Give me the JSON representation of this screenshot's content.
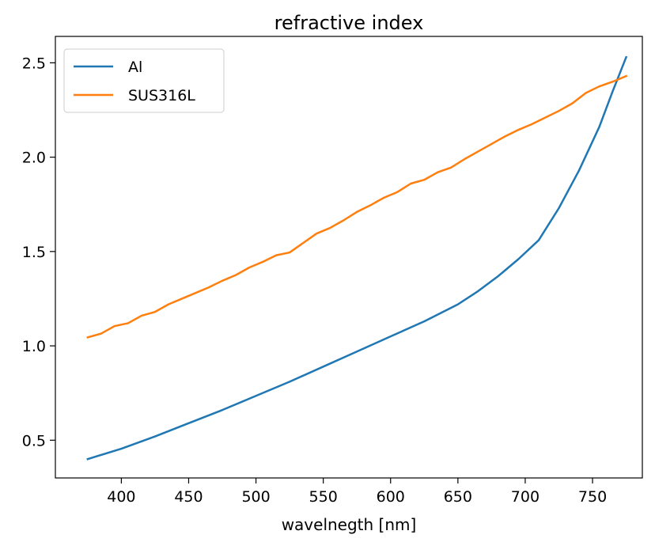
{
  "chart_data": {
    "type": "line",
    "title": "refractive index",
    "xlabel": "wavelnegth [nm]",
    "ylabel": "",
    "xlim": [
      351,
      787
    ],
    "ylim": [
      0.3,
      2.64
    ],
    "xticks": [
      400,
      450,
      500,
      550,
      600,
      650,
      700,
      750
    ],
    "yticks": [
      0.5,
      1.0,
      1.5,
      2.0,
      2.5
    ],
    "xtick_labels": [
      "400",
      "450",
      "500",
      "550",
      "600",
      "650",
      "700",
      "750"
    ],
    "ytick_labels": [
      "0.5",
      "1.0",
      "1.5",
      "2.0",
      "2.5"
    ],
    "grid": false,
    "legend_position": "top-left",
    "series": [
      {
        "name": "Al",
        "color": "#1f77b4",
        "x": [
          375,
          400,
          425,
          450,
          475,
          500,
          525,
          550,
          575,
          600,
          625,
          650,
          665,
          680,
          695,
          710,
          725,
          740,
          755,
          765,
          775
        ],
        "y": [
          0.4,
          0.455,
          0.52,
          0.59,
          0.66,
          0.735,
          0.81,
          0.89,
          0.97,
          1.05,
          1.13,
          1.22,
          1.29,
          1.37,
          1.46,
          1.56,
          1.73,
          1.93,
          2.16,
          2.35,
          2.53
        ]
      },
      {
        "name": "SUS316L",
        "color": "#ff7f0e",
        "x": [
          375,
          385,
          395,
          405,
          415,
          425,
          435,
          445,
          455,
          465,
          475,
          485,
          495,
          505,
          515,
          525,
          535,
          545,
          555,
          565,
          575,
          585,
          595,
          605,
          615,
          625,
          635,
          645,
          655,
          665,
          675,
          685,
          695,
          705,
          715,
          725,
          735,
          745,
          755,
          765,
          775
        ],
        "y": [
          1.045,
          1.065,
          1.105,
          1.12,
          1.16,
          1.18,
          1.22,
          1.25,
          1.28,
          1.31,
          1.345,
          1.375,
          1.415,
          1.445,
          1.48,
          1.495,
          1.545,
          1.595,
          1.625,
          1.665,
          1.71,
          1.745,
          1.785,
          1.815,
          1.86,
          1.88,
          1.92,
          1.945,
          1.99,
          2.03,
          2.07,
          2.11,
          2.145,
          2.175,
          2.21,
          2.245,
          2.285,
          2.34,
          2.375,
          2.4,
          2.43
        ]
      }
    ]
  }
}
